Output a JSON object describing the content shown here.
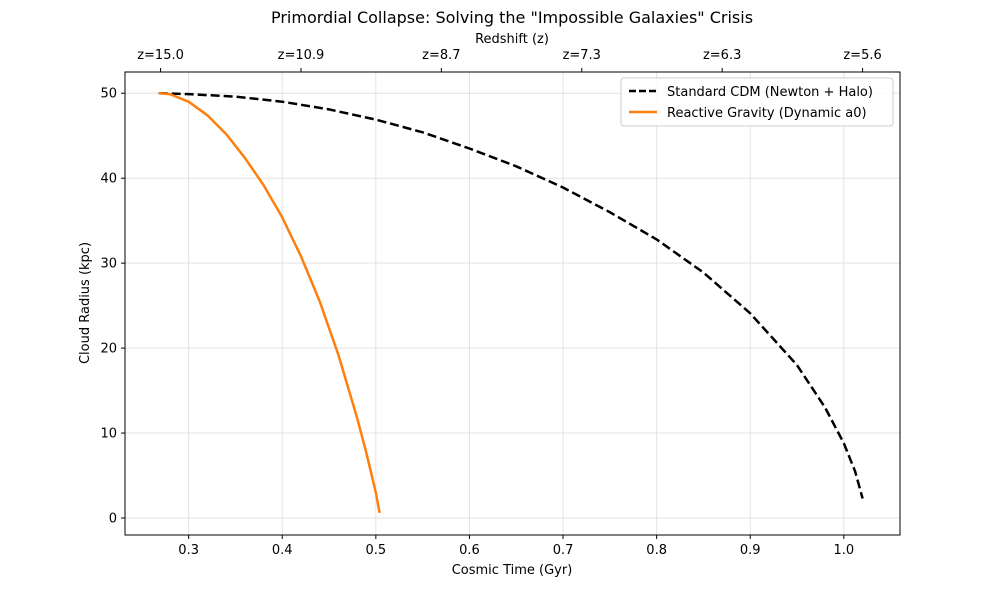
{
  "chart_data": {
    "type": "line",
    "title": "Primordial Collapse: Solving the \"Impossible Galaxies\" Crisis",
    "xlabel": "Cosmic Time (Gyr)",
    "ylabel": "Cloud Radius (kpc)",
    "secondary_xlabel": "Redshift (z)",
    "xlim": [
      0.232,
      1.06
    ],
    "ylim": [
      -2.0,
      52.5
    ],
    "x_ticks": [
      0.3,
      0.4,
      0.5,
      0.6,
      0.7,
      0.8,
      0.9,
      1.0
    ],
    "x_tick_labels": [
      "0.3",
      "0.4",
      "0.5",
      "0.6",
      "0.7",
      "0.8",
      "0.9",
      "1.0"
    ],
    "y_ticks": [
      0,
      10,
      20,
      30,
      40,
      50
    ],
    "y_tick_labels": [
      "0",
      "10",
      "20",
      "30",
      "40",
      "50"
    ],
    "secondary_x_ticks": [
      0.27,
      0.42,
      0.57,
      0.72,
      0.87,
      1.02
    ],
    "secondary_x_tick_labels": [
      "z=15.0",
      "z=10.9",
      "z=8.7",
      "z=7.3",
      "z=6.3",
      "z=5.6"
    ],
    "grid": true,
    "legend_position": "top-right",
    "series": [
      {
        "name": "Standard CDM (Newton + Halo)",
        "color": "#000000",
        "style": "dashed",
        "x": [
          0.268,
          0.3,
          0.35,
          0.4,
          0.45,
          0.5,
          0.55,
          0.6,
          0.65,
          0.7,
          0.75,
          0.8,
          0.85,
          0.9,
          0.95,
          0.98,
          1.0,
          1.012,
          1.02
        ],
        "y": [
          50.0,
          49.9,
          49.6,
          49.0,
          48.1,
          46.9,
          45.4,
          43.5,
          41.4,
          38.9,
          36.0,
          32.8,
          28.9,
          24.1,
          18.0,
          13.0,
          8.8,
          5.5,
          2.3
        ]
      },
      {
        "name": "Reactive Gravity (Dynamic a0)",
        "color": "#ff7f0e",
        "style": "solid",
        "x": [
          0.268,
          0.28,
          0.3,
          0.32,
          0.34,
          0.36,
          0.38,
          0.4,
          0.42,
          0.44,
          0.46,
          0.48,
          0.49,
          0.5,
          0.504
        ],
        "y": [
          50.0,
          49.9,
          49.0,
          47.4,
          45.2,
          42.4,
          39.2,
          35.4,
          30.8,
          25.5,
          19.2,
          11.8,
          7.6,
          3.0,
          0.6
        ]
      }
    ]
  }
}
